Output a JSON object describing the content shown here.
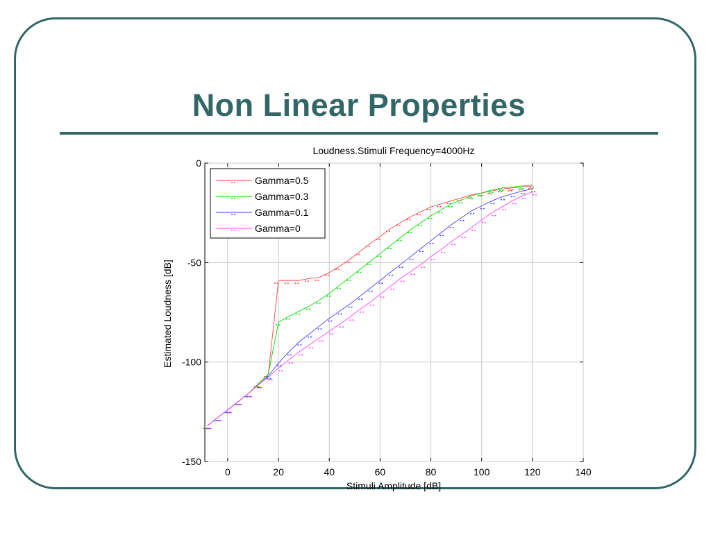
{
  "slide": {
    "title": "Non Linear Properties",
    "accent_color": "#336666"
  },
  "chart_data": {
    "type": "line",
    "title": "Loudness.Stimuli Frequency=4000Hz",
    "xlabel": "Stimuli Amplitude [dB]",
    "ylabel": "Estimated Loudness [dB]",
    "xlim": [
      -9,
      140
    ],
    "ylim": [
      -150,
      0
    ],
    "xticks": [
      0,
      20,
      40,
      60,
      80,
      100,
      120,
      140
    ],
    "yticks": [
      0,
      -50,
      -100,
      -150
    ],
    "grid": true,
    "legend_position": "top-left",
    "x": [
      -8,
      -4,
      0,
      4,
      8,
      12,
      16,
      20,
      24,
      28,
      32,
      36,
      40,
      44,
      48,
      52,
      56,
      60,
      64,
      68,
      72,
      76,
      80,
      84,
      88,
      92,
      96,
      100,
      104,
      108,
      112,
      116,
      120
    ],
    "series": [
      {
        "name": "Gamma=0.5",
        "color": "#ff4444",
        "values": [
          -132,
          -128,
          -124,
          -120,
          -116,
          -111,
          -106,
          -59,
          -59,
          -59,
          -58,
          -57.5,
          -55,
          -52,
          -48.5,
          -44.5,
          -40.5,
          -37,
          -33,
          -30,
          -27,
          -24.5,
          -22,
          -20.5,
          -19,
          -17.5,
          -16,
          -15,
          -14,
          -13,
          -12.5,
          -12,
          -11.5
        ]
      },
      {
        "name": "Gamma=0.3",
        "color": "#00dd00",
        "values": [
          -132,
          -128,
          -124,
          -120,
          -116,
          -111,
          -106,
          -80,
          -77,
          -74.5,
          -72,
          -69,
          -65.5,
          -61.5,
          -57.5,
          -53.5,
          -49.5,
          -45.5,
          -41.5,
          -37.5,
          -33.5,
          -30,
          -26.5,
          -23.5,
          -20.5,
          -18.5,
          -16.5,
          -15,
          -13.5,
          -12.5,
          -12,
          -11.5,
          -11
        ]
      },
      {
        "name": "Gamma=0.1",
        "color": "#4444ff",
        "values": [
          -132,
          -128,
          -124,
          -120,
          -116,
          -111.5,
          -107,
          -100.5,
          -95,
          -90,
          -86,
          -82,
          -78,
          -74.5,
          -71,
          -67,
          -63,
          -59,
          -55,
          -51,
          -47,
          -43,
          -39,
          -35,
          -31,
          -27.5,
          -24,
          -21.5,
          -19,
          -17,
          -15.5,
          -14,
          -13
        ]
      },
      {
        "name": "Gamma=0",
        "color": "#ff44ff",
        "values": [
          -132,
          -128,
          -124,
          -120,
          -116,
          -111.5,
          -107.5,
          -103,
          -99,
          -95,
          -91.5,
          -88,
          -84.5,
          -81,
          -77.5,
          -73.5,
          -70,
          -66,
          -62,
          -58,
          -54.5,
          -51,
          -47,
          -43.5,
          -39.5,
          -36,
          -32.5,
          -28.5,
          -25,
          -22,
          -19,
          -16.5,
          -14.5
        ]
      }
    ]
  }
}
